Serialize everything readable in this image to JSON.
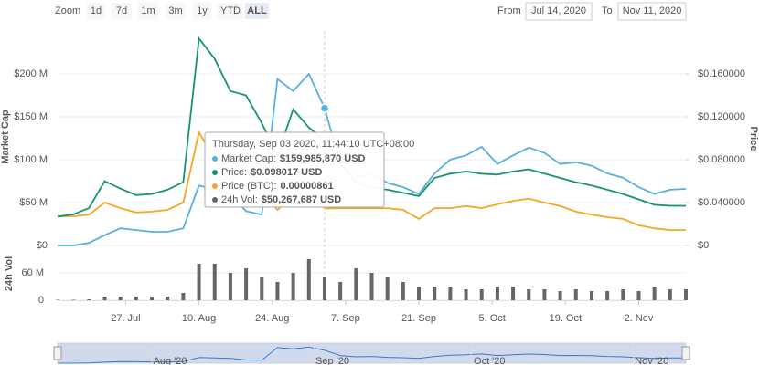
{
  "toolbar": {
    "zoom": "Zoom",
    "buttons": [
      "1d",
      "7d",
      "1m",
      "3m",
      "1y",
      "YTD",
      "ALL"
    ],
    "active": 6,
    "from_label": "From",
    "from": "Jul 14, 2020",
    "to_label": "To",
    "to": "Nov 11, 2020"
  },
  "chart_data": [
    {
      "type": "line",
      "x": [
        "2020-07-14",
        "2020-07-17",
        "2020-07-20",
        "2020-07-23",
        "2020-07-26",
        "2020-07-29",
        "2020-08-01",
        "2020-08-04",
        "2020-08-07",
        "2020-08-10",
        "2020-08-13",
        "2020-08-16",
        "2020-08-19",
        "2020-08-22",
        "2020-08-25",
        "2020-08-28",
        "2020-08-31",
        "2020-09-03",
        "2020-09-06",
        "2020-09-09",
        "2020-09-12",
        "2020-09-15",
        "2020-09-18",
        "2020-09-21",
        "2020-09-24",
        "2020-09-27",
        "2020-09-30",
        "2020-10-03",
        "2020-10-06",
        "2020-10-09",
        "2020-10-12",
        "2020-10-15",
        "2020-10-18",
        "2020-10-21",
        "2020-10-24",
        "2020-10-27",
        "2020-10-30",
        "2020-11-02",
        "2020-11-05",
        "2020-11-08",
        "2020-11-11"
      ],
      "xlim": [
        "2020-07-14",
        "2020-11-11"
      ],
      "ylabel": "Market Cap",
      "y2label": "Price",
      "ylim": [
        0,
        250000000
      ],
      "yticks": [
        {
          "value": 0,
          "label": "$0"
        },
        {
          "value": 50000000,
          "label": "$50 M"
        },
        {
          "value": 100000000,
          "label": "$100 M"
        },
        {
          "value": 150000000,
          "label": "$150 M"
        },
        {
          "value": 200000000,
          "label": "$200 M"
        }
      ],
      "y2lim": [
        0,
        0.2
      ],
      "y2ticks": [
        {
          "value": 0,
          "label": "$0"
        },
        {
          "value": 0.04,
          "label": "$0.040000"
        },
        {
          "value": 0.08,
          "label": "$0.080000"
        },
        {
          "value": 0.12,
          "label": "$0.120000"
        },
        {
          "value": 0.16,
          "label": "$0.160000"
        }
      ],
      "y3lim": [
        0,
        5e-05
      ],
      "grid": true,
      "series": [
        {
          "name": "Market Cap",
          "color": "#5aaee0",
          "axis": "y",
          "values": [
            0,
            0,
            3000000,
            12000000,
            20000000,
            18000000,
            16000000,
            16000000,
            20000000,
            70000000,
            65000000,
            60000000,
            40000000,
            36000000,
            194000000,
            180000000,
            200000000,
            160000000,
            95000000,
            80000000,
            84000000,
            73000000,
            68000000,
            60000000,
            84000000,
            100000000,
            105000000,
            115000000,
            95000000,
            105000000,
            114000000,
            108000000,
            95000000,
            97000000,
            93000000,
            84000000,
            79000000,
            68000000,
            60000000,
            65000000,
            66000000
          ]
        },
        {
          "name": "Price",
          "color": "#16946b",
          "axis": "y2",
          "values": [
            0.027,
            0.029,
            0.035,
            0.06,
            0.053,
            0.047,
            0.048,
            0.052,
            0.059,
            0.193,
            0.174,
            0.144,
            0.14,
            0.114,
            0.084,
            0.127,
            0.11,
            0.098,
            0.076,
            0.059,
            0.054,
            0.052,
            0.049,
            0.046,
            0.063,
            0.067,
            0.069,
            0.067,
            0.066,
            0.069,
            0.071,
            0.067,
            0.063,
            0.059,
            0.056,
            0.052,
            0.048,
            0.043,
            0.038,
            0.037,
            0.037
          ]
        },
        {
          "name": "Price (BTC)",
          "color": "#f5a623",
          "axis": "y3",
          "values": [
            6.8e-06,
            6.8e-06,
            7.2e-06,
            1e-05,
            8.7e-06,
            7.7e-06,
            7.9e-06,
            8.3e-06,
            1e-05,
            2.64e-05,
            2e-05,
            1.57e-05,
            1.68e-05,
            1.26e-05,
            8.3e-06,
            1.15e-05,
            1.36e-05,
            8.61e-06,
            8.7e-06,
            8.7e-06,
            8.7e-06,
            8.7e-06,
            8.3e-06,
            6.2e-06,
            8.7e-06,
            8.7e-06,
            9.2e-06,
            8.7e-06,
            9.6e-06,
            1.04e-05,
            1.09e-05,
            1e-05,
            9.2e-06,
            7.9e-06,
            7.2e-06,
            6.6e-06,
            6.2e-06,
            4.7e-06,
            4e-06,
            3.6e-06,
            3.6e-06
          ]
        }
      ],
      "highlight": 17,
      "tooltip": {
        "title": "Thursday, Sep 03 2020, 11:44:10 UTC+08:00",
        "items": [
          {
            "label": "Market Cap:",
            "text": "$159,985,870 USD",
            "color": "#5aaee0"
          },
          {
            "label": "Price:",
            "text": "$0.098017 USD",
            "color": "#16946b"
          },
          {
            "label": "Price (BTC):",
            "text": "0.00000861",
            "color": "#f5a623"
          },
          {
            "label": "24h Vol:",
            "text": "$50,267,687 USD",
            "color": "#666666"
          }
        ]
      }
    },
    {
      "type": "bar",
      "x": [
        "2020-07-14",
        "2020-07-17",
        "2020-07-20",
        "2020-07-23",
        "2020-07-26",
        "2020-07-29",
        "2020-08-01",
        "2020-08-04",
        "2020-08-07",
        "2020-08-10",
        "2020-08-13",
        "2020-08-16",
        "2020-08-19",
        "2020-08-22",
        "2020-08-25",
        "2020-08-28",
        "2020-08-31",
        "2020-09-03",
        "2020-09-06",
        "2020-09-09",
        "2020-09-12",
        "2020-09-15",
        "2020-09-18",
        "2020-09-21",
        "2020-09-24",
        "2020-09-27",
        "2020-09-30",
        "2020-10-03",
        "2020-10-06",
        "2020-10-09",
        "2020-10-12",
        "2020-10-15",
        "2020-10-18",
        "2020-10-21",
        "2020-10-24",
        "2020-10-27",
        "2020-10-30",
        "2020-11-02",
        "2020-11-05",
        "2020-11-08",
        "2020-11-11"
      ],
      "xlim": [
        "2020-07-14",
        "2020-11-11"
      ],
      "xticks": [
        {
          "value": "2020-07-27",
          "label": "27. Jul"
        },
        {
          "value": "2020-08-10",
          "label": "10. Aug"
        },
        {
          "value": "2020-08-24",
          "label": "24. Aug"
        },
        {
          "value": "2020-09-07",
          "label": "7. Sep"
        },
        {
          "value": "2020-09-21",
          "label": "21. Sep"
        },
        {
          "value": "2020-10-05",
          "label": "5. Oct"
        },
        {
          "value": "2020-10-19",
          "label": "19. Oct"
        },
        {
          "value": "2020-11-02",
          "label": "2. Nov"
        }
      ],
      "ylabel": "24h Vol",
      "ylim": [
        0,
        120000000
      ],
      "yticks": [
        0,
        {
          "value": 60000000,
          "label": "60 M"
        }
      ],
      "color": "#666666",
      "values": [
        1000000,
        1000000,
        2000000,
        8000000,
        8000000,
        8000000,
        8000000,
        8000000,
        16000000,
        80000000,
        80000000,
        60000000,
        70000000,
        50000000,
        40000000,
        60000000,
        90000000,
        50000000,
        40000000,
        70000000,
        60000000,
        50000000,
        40000000,
        30000000,
        30000000,
        30000000,
        24000000,
        24000000,
        30000000,
        30000000,
        24000000,
        24000000,
        20000000,
        24000000,
        20000000,
        20000000,
        24000000,
        20000000,
        30000000,
        24000000,
        24000000
      ]
    }
  ],
  "navigator": {
    "xticks": [
      {
        "value": "2020-08-01",
        "label": "Aug '20"
      },
      {
        "value": "2020-09-01",
        "label": "Sep '20"
      },
      {
        "value": "2020-10-01",
        "label": "Oct '20"
      },
      {
        "value": "2020-11-01",
        "label": "Nov '20"
      }
    ]
  }
}
